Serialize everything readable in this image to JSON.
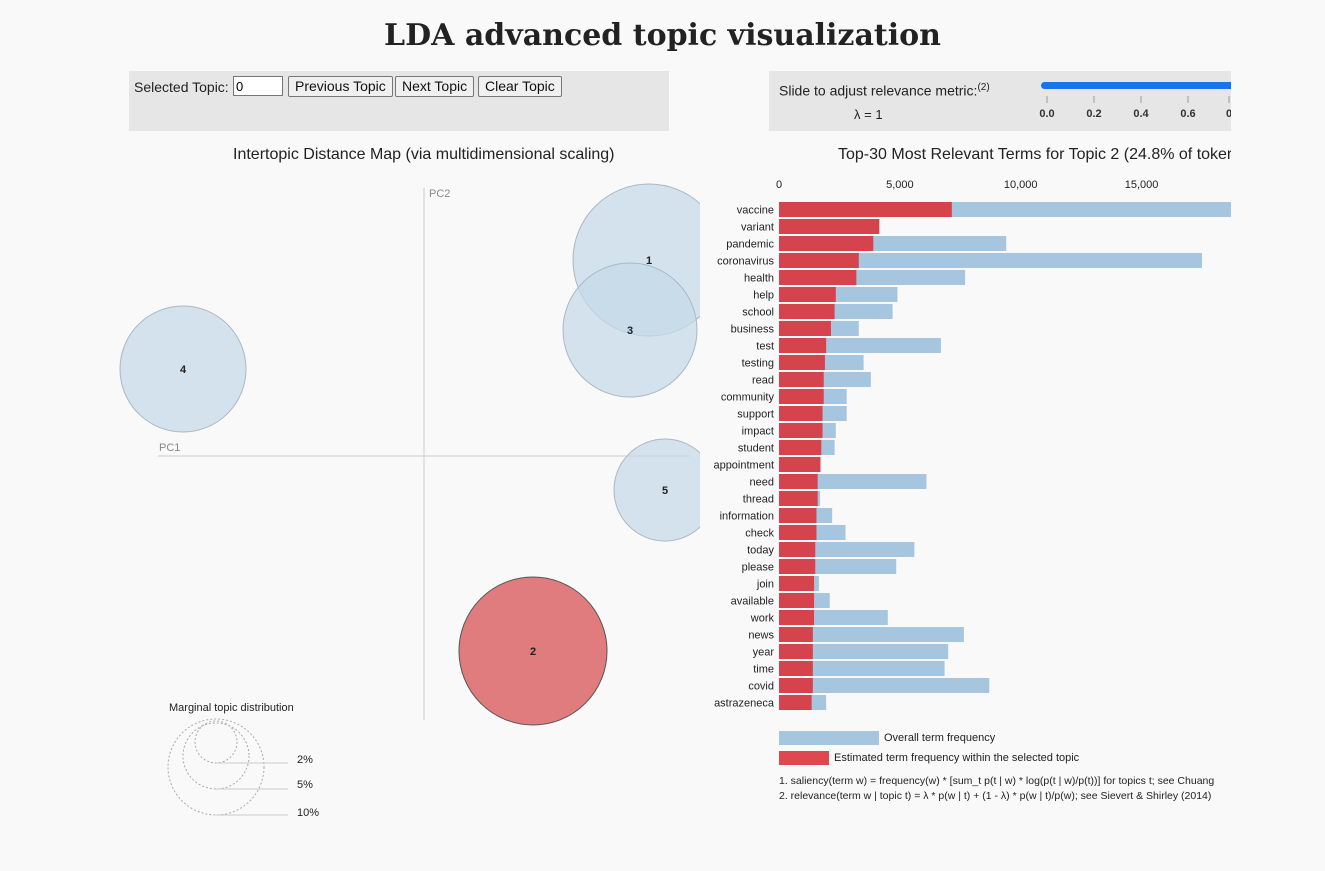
{
  "title": "LDA advanced topic visualization",
  "controls": {
    "selected_topic_label": "Selected Topic:",
    "selected_topic_value": "0",
    "previous_topic": "Previous Topic",
    "next_topic": "Next Topic",
    "clear_topic": "Clear Topic",
    "slider_label": "Slide to adjust relevance metric:",
    "slider_footnote": "(2)",
    "lambda_text": "λ = 1",
    "slider_value": 1,
    "slider_ticks": [
      "0.0",
      "0.2",
      "0.4",
      "0.6",
      "0"
    ]
  },
  "left_chart": {
    "title": "Intertopic Distance Map (via multidimensional scaling)",
    "pc1_label": "PC1",
    "pc2_label": "PC2",
    "topics": [
      {
        "id": "1",
        "selected": false
      },
      {
        "id": "2",
        "selected": true
      },
      {
        "id": "3",
        "selected": false
      },
      {
        "id": "4",
        "selected": false
      },
      {
        "id": "5",
        "selected": false
      }
    ],
    "marginal": {
      "title": "Marginal topic distribution",
      "labels": [
        "2%",
        "5%",
        "10%"
      ]
    }
  },
  "chart_data": {
    "type": "bar",
    "title": "Top-30 Most Relevant Terms for Topic 2 (24.8% of toker",
    "x_ticks": [
      "0",
      "5,000",
      "10,000",
      "15,000"
    ],
    "xlim": [
      0,
      18700
    ],
    "categories": [
      "vaccine",
      "variant",
      "pandemic",
      "coronavirus",
      "health",
      "help",
      "school",
      "business",
      "test",
      "testing",
      "read",
      "community",
      "support",
      "impact",
      "student",
      "appointment",
      "need",
      "thread",
      "information",
      "check",
      "today",
      "please",
      "join",
      "available",
      "work",
      "news",
      "year",
      "time",
      "covid",
      "astrazeneca"
    ],
    "series": [
      {
        "name": "Overall term frequency",
        "color": "#a6c5de",
        "values": [
          18800,
          4000,
          9400,
          17500,
          7700,
          4900,
          4700,
          3300,
          6700,
          3500,
          3800,
          2800,
          2800,
          2350,
          2300,
          1750,
          6100,
          1700,
          2200,
          2750,
          5600,
          4850,
          1650,
          2100,
          4500,
          7650,
          7000,
          6850,
          8700,
          1950
        ]
      },
      {
        "name": "Estimated term frequency within the selected topic",
        "color": "#d5434c",
        "values": [
          7150,
          4150,
          3900,
          3300,
          3200,
          2350,
          2300,
          2150,
          1950,
          1900,
          1850,
          1850,
          1800,
          1800,
          1750,
          1700,
          1600,
          1600,
          1550,
          1550,
          1500,
          1500,
          1450,
          1450,
          1450,
          1400,
          1400,
          1400,
          1400,
          1350
        ]
      }
    ],
    "legend": [
      "Overall term frequency",
      "Estimated term frequency within the selected topic"
    ]
  },
  "footnotes": [
    "1. saliency(term w) = frequency(w) * [sum_t p(t | w) * log(p(t | w)/p(t))] for topics t; see Chuang",
    "2. relevance(term w | topic t) = λ * p(w | t) + (1 - λ) * p(w | t)/p(w); see Sievert & Shirley (2014)"
  ],
  "colors": {
    "selected_topic": "#e07b7e",
    "topic_circle": "#c5d9e8",
    "bar_overall": "#a6c5de",
    "bar_topic": "#d5434c",
    "slider": "#1a73e8"
  }
}
